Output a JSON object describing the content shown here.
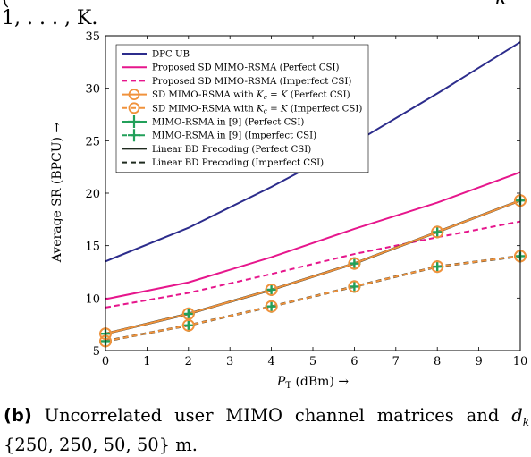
{
  "header_fragment": {
    "line1": "(",
    "line1_right": "k",
    "line2": "1, . . . , K."
  },
  "caption": {
    "label": "(b)",
    "text_line1_words": [
      "Uncorrelated",
      "user",
      "MIMO",
      "channel",
      "matrices",
      "and"
    ],
    "text_line1_var": "d",
    "text_line1_sub": "k",
    "text_line2": "{250, 250, 50, 50} m."
  },
  "chart_data": {
    "type": "line",
    "xlabel": "P",
    "xlabel_sub": "T",
    "xlabel_unit": "(dBm)",
    "xlabel_arrow": "→",
    "ylabel": "Average SR (BPCU)",
    "ylabel_arrow": "→",
    "xlim": [
      0,
      10
    ],
    "ylim": [
      5,
      35
    ],
    "xticks": [
      "0",
      "1",
      "2",
      "3",
      "4",
      "5",
      "6",
      "7",
      "8",
      "9",
      "10"
    ],
    "yticks": [
      "5",
      "10",
      "15",
      "20",
      "25",
      "30",
      "35"
    ],
    "grid": false,
    "legend_position": "top-left",
    "series": [
      {
        "name": "DPC UB",
        "color": "#2c2c8c",
        "dash": "solid",
        "marker": "none",
        "x": [
          0,
          2,
          4,
          6,
          8,
          10
        ],
        "y": [
          13.5,
          16.7,
          20.6,
          24.8,
          29.5,
          34.4
        ]
      },
      {
        "name": "Proposed SD MIMO-RSMA (Perfect CSI)",
        "color": "#e6168c",
        "dash": "solid",
        "marker": "none",
        "x": [
          0,
          2,
          4,
          6,
          8,
          10
        ],
        "y": [
          9.9,
          11.5,
          13.9,
          16.6,
          19.1,
          22.0
        ]
      },
      {
        "name": "Proposed SD MIMO-RSMA (Imperfect CSI)",
        "color": "#e6168c",
        "dash": "dashed",
        "marker": "none",
        "x": [
          0,
          2,
          4,
          6,
          8,
          10
        ],
        "y": [
          9.1,
          10.5,
          12.3,
          14.2,
          15.8,
          17.3
        ]
      },
      {
        "name": "SD MIMO-RSMA with K_c = K (Perfect CSI)",
        "legend_prefix": "SD MIMO-RSMA with",
        "legend_suffix": "(Perfect CSI)",
        "color": "#f0923c",
        "dash": "solid",
        "marker": "circle",
        "x": [
          0,
          2,
          4,
          6,
          8,
          10
        ],
        "y": [
          6.6,
          8.5,
          10.8,
          13.3,
          16.3,
          19.3
        ]
      },
      {
        "name": "SD MIMO-RSMA with K_c = K (Imperfect CSI)",
        "legend_prefix": "SD MIMO-RSMA with",
        "legend_suffix": "(Imperfect CSI)",
        "color": "#f0923c",
        "dash": "dashed",
        "marker": "circle",
        "x": [
          0,
          2,
          4,
          6,
          8,
          10
        ],
        "y": [
          5.9,
          7.4,
          9.2,
          11.1,
          13.0,
          14.0
        ]
      },
      {
        "name": "MIMO-RSMA in [9] (Perfect CSI)",
        "color": "#22a05a",
        "dash": "solid",
        "marker": "plus",
        "x": [
          0,
          2,
          4,
          6,
          8,
          10
        ],
        "y": [
          6.6,
          8.5,
          10.8,
          13.3,
          16.3,
          19.3
        ]
      },
      {
        "name": "MIMO-RSMA in [9] (Imperfect CSI)",
        "color": "#22a05a",
        "dash": "dashed",
        "marker": "plus",
        "x": [
          0,
          2,
          4,
          6,
          8,
          10
        ],
        "y": [
          5.9,
          7.4,
          9.2,
          11.1,
          13.0,
          14.0
        ]
      },
      {
        "name": "Linear BD Precoding (Perfect CSI)",
        "color": "#1f2a1f",
        "dash": "solid",
        "marker": "none",
        "x": [
          0,
          2,
          4,
          6,
          8,
          10
        ],
        "y": [
          6.6,
          8.5,
          10.8,
          13.3,
          16.3,
          19.3
        ]
      },
      {
        "name": "Linear BD Precoding (Imperfect CSI)",
        "color": "#1f2a1f",
        "dash": "dashed",
        "marker": "none",
        "x": [
          0,
          2,
          4,
          6,
          8,
          10
        ],
        "y": [
          5.9,
          7.4,
          9.2,
          11.1,
          13.0,
          14.0
        ]
      }
    ]
  }
}
